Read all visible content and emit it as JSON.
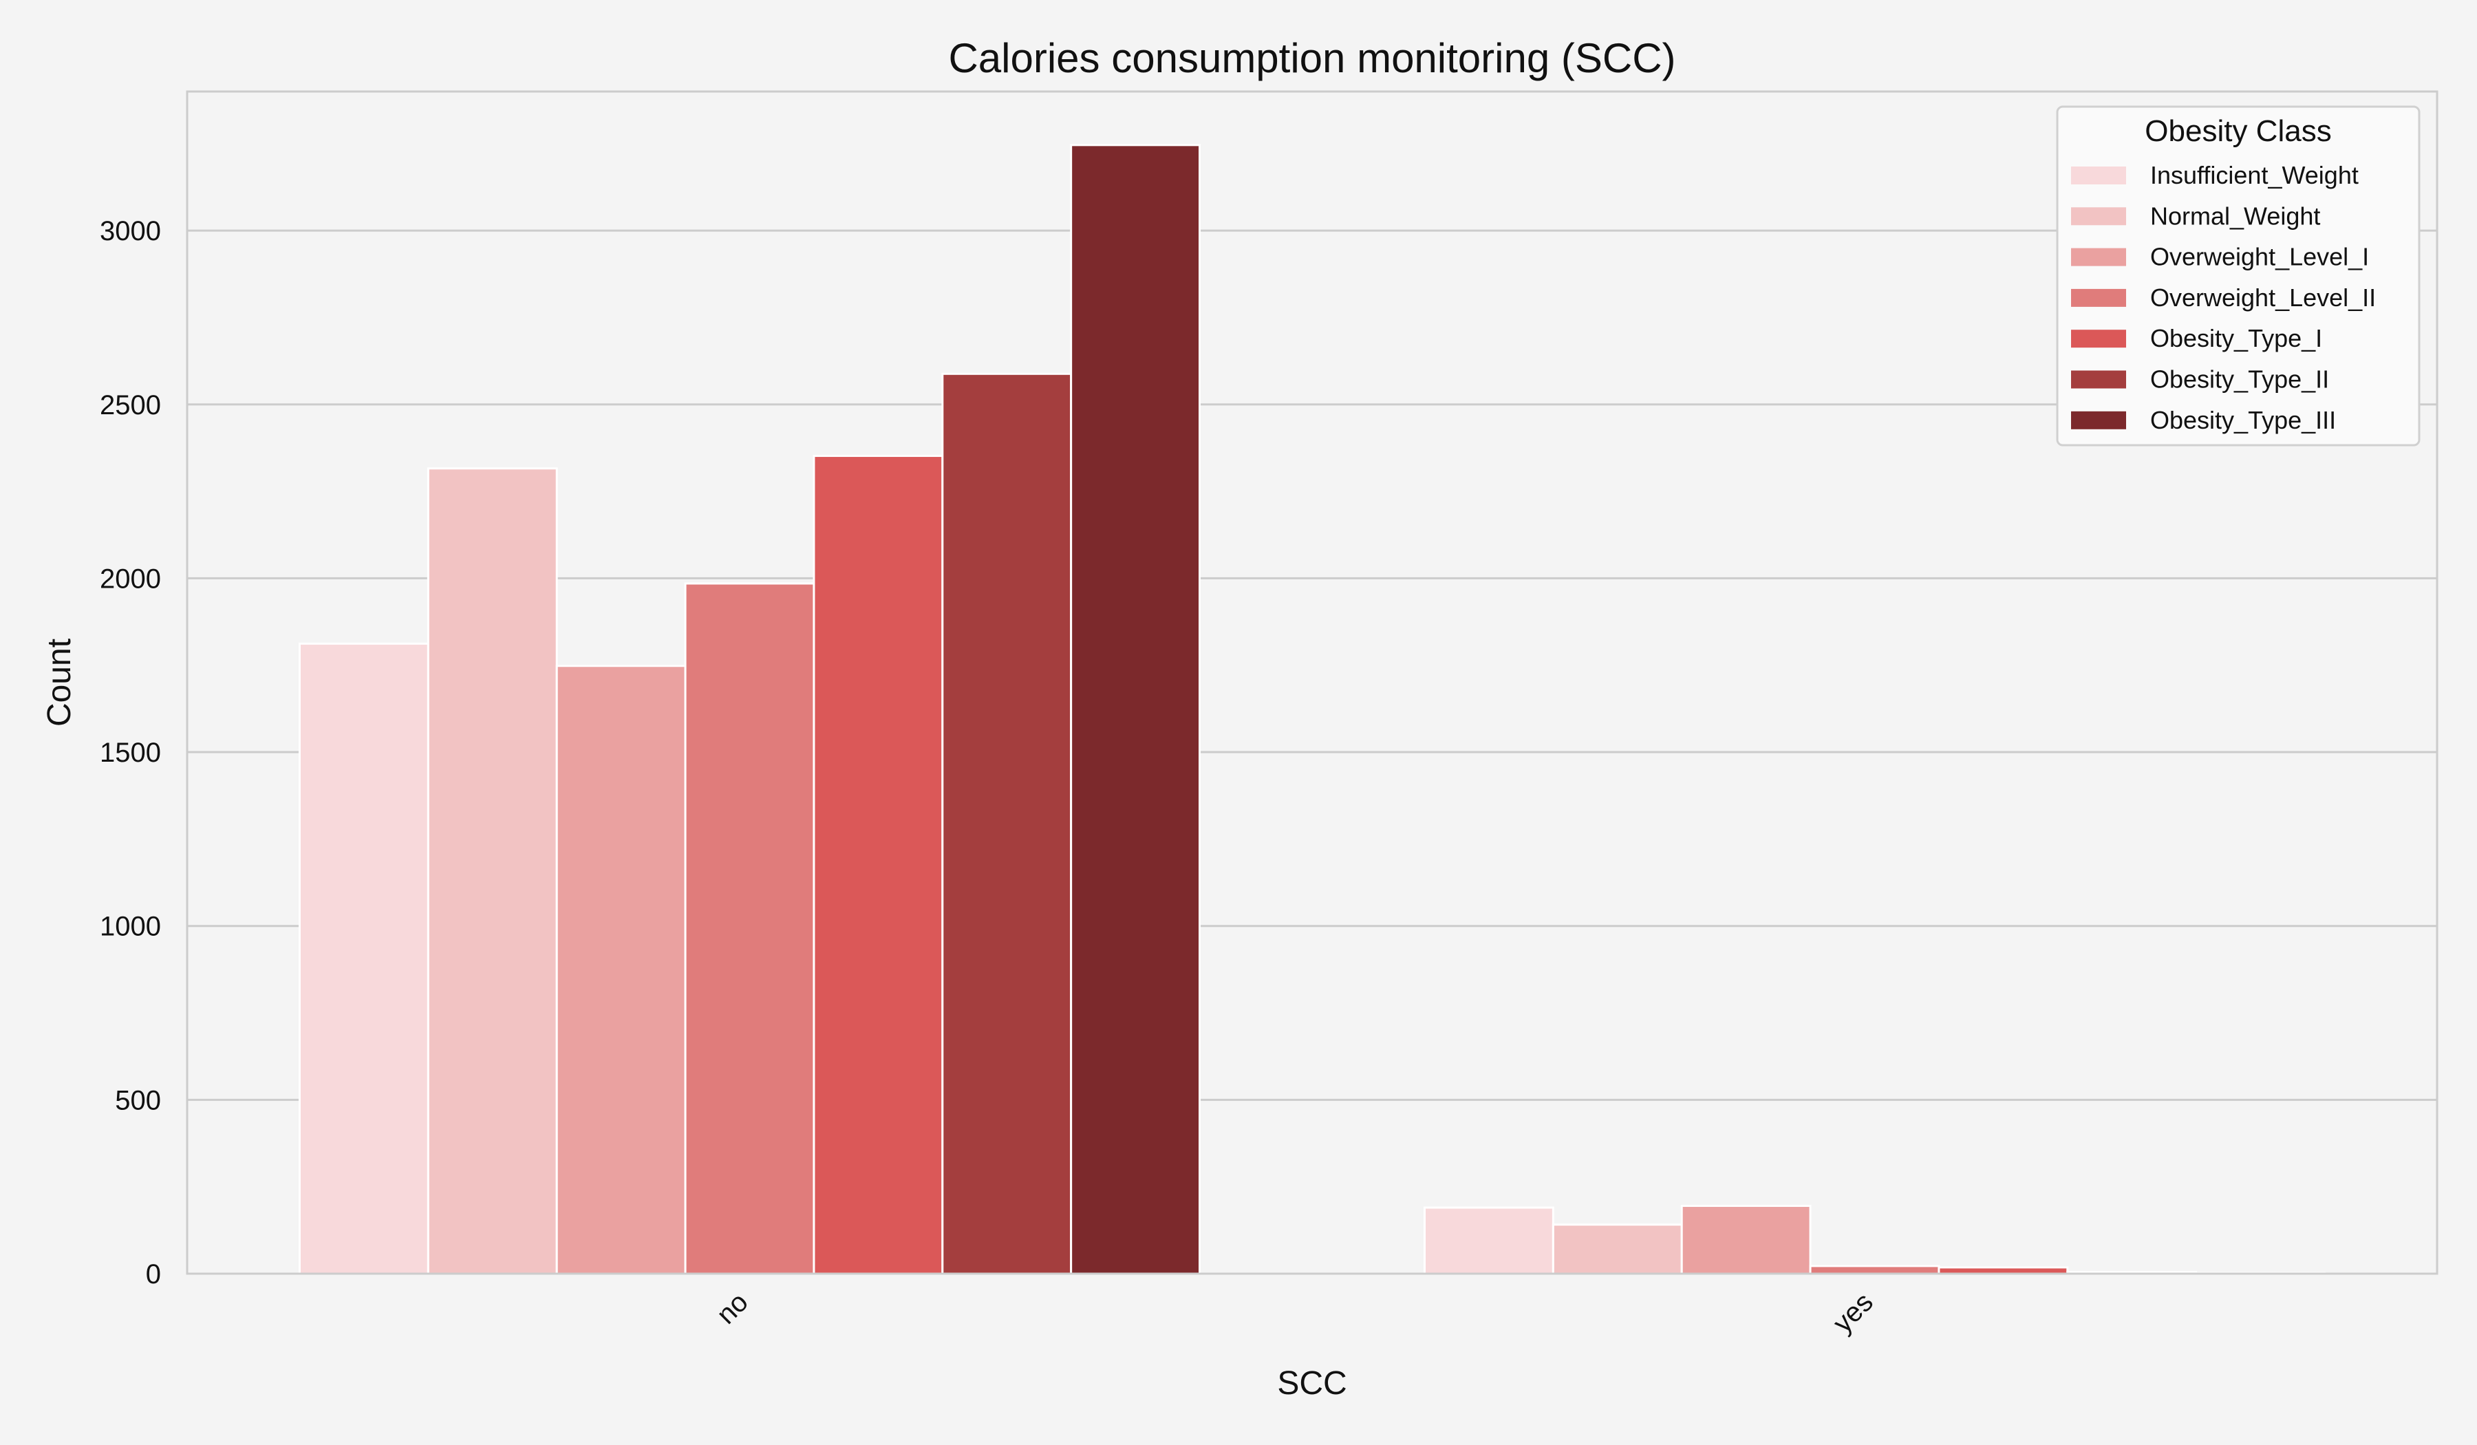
{
  "chart_data": {
    "type": "bar",
    "title": "Calories consumption monitoring (SCC)",
    "xlabel": "SCC",
    "ylabel": "Count",
    "categories": [
      "no",
      "yes"
    ],
    "ylim": [
      0,
      3400
    ],
    "yticks": [
      0,
      500,
      1000,
      1500,
      2000,
      2500,
      3000
    ],
    "grid": "horizontal",
    "legend": {
      "title": "Obesity Class",
      "placement": "top-right"
    },
    "series": [
      {
        "name": "Insufficient_Weight",
        "color": "#f8d9db",
        "values": [
          1812,
          190
        ]
      },
      {
        "name": "Normal_Weight",
        "color": "#f2c3c3",
        "values": [
          2316,
          141
        ]
      },
      {
        "name": "Overweight_Level_I",
        "color": "#eaa1a0",
        "values": [
          1748,
          195
        ]
      },
      {
        "name": "Overweight_Level_II",
        "color": "#e07c7b",
        "values": [
          1985,
          22
        ]
      },
      {
        "name": "Obesity_Type_I",
        "color": "#db5858",
        "values": [
          2352,
          18
        ]
      },
      {
        "name": "Obesity_Type_II",
        "color": "#a43e3e",
        "values": [
          2588,
          5
        ]
      },
      {
        "name": "Obesity_Type_III",
        "color": "#7c292c",
        "values": [
          3246,
          2
        ]
      }
    ]
  }
}
